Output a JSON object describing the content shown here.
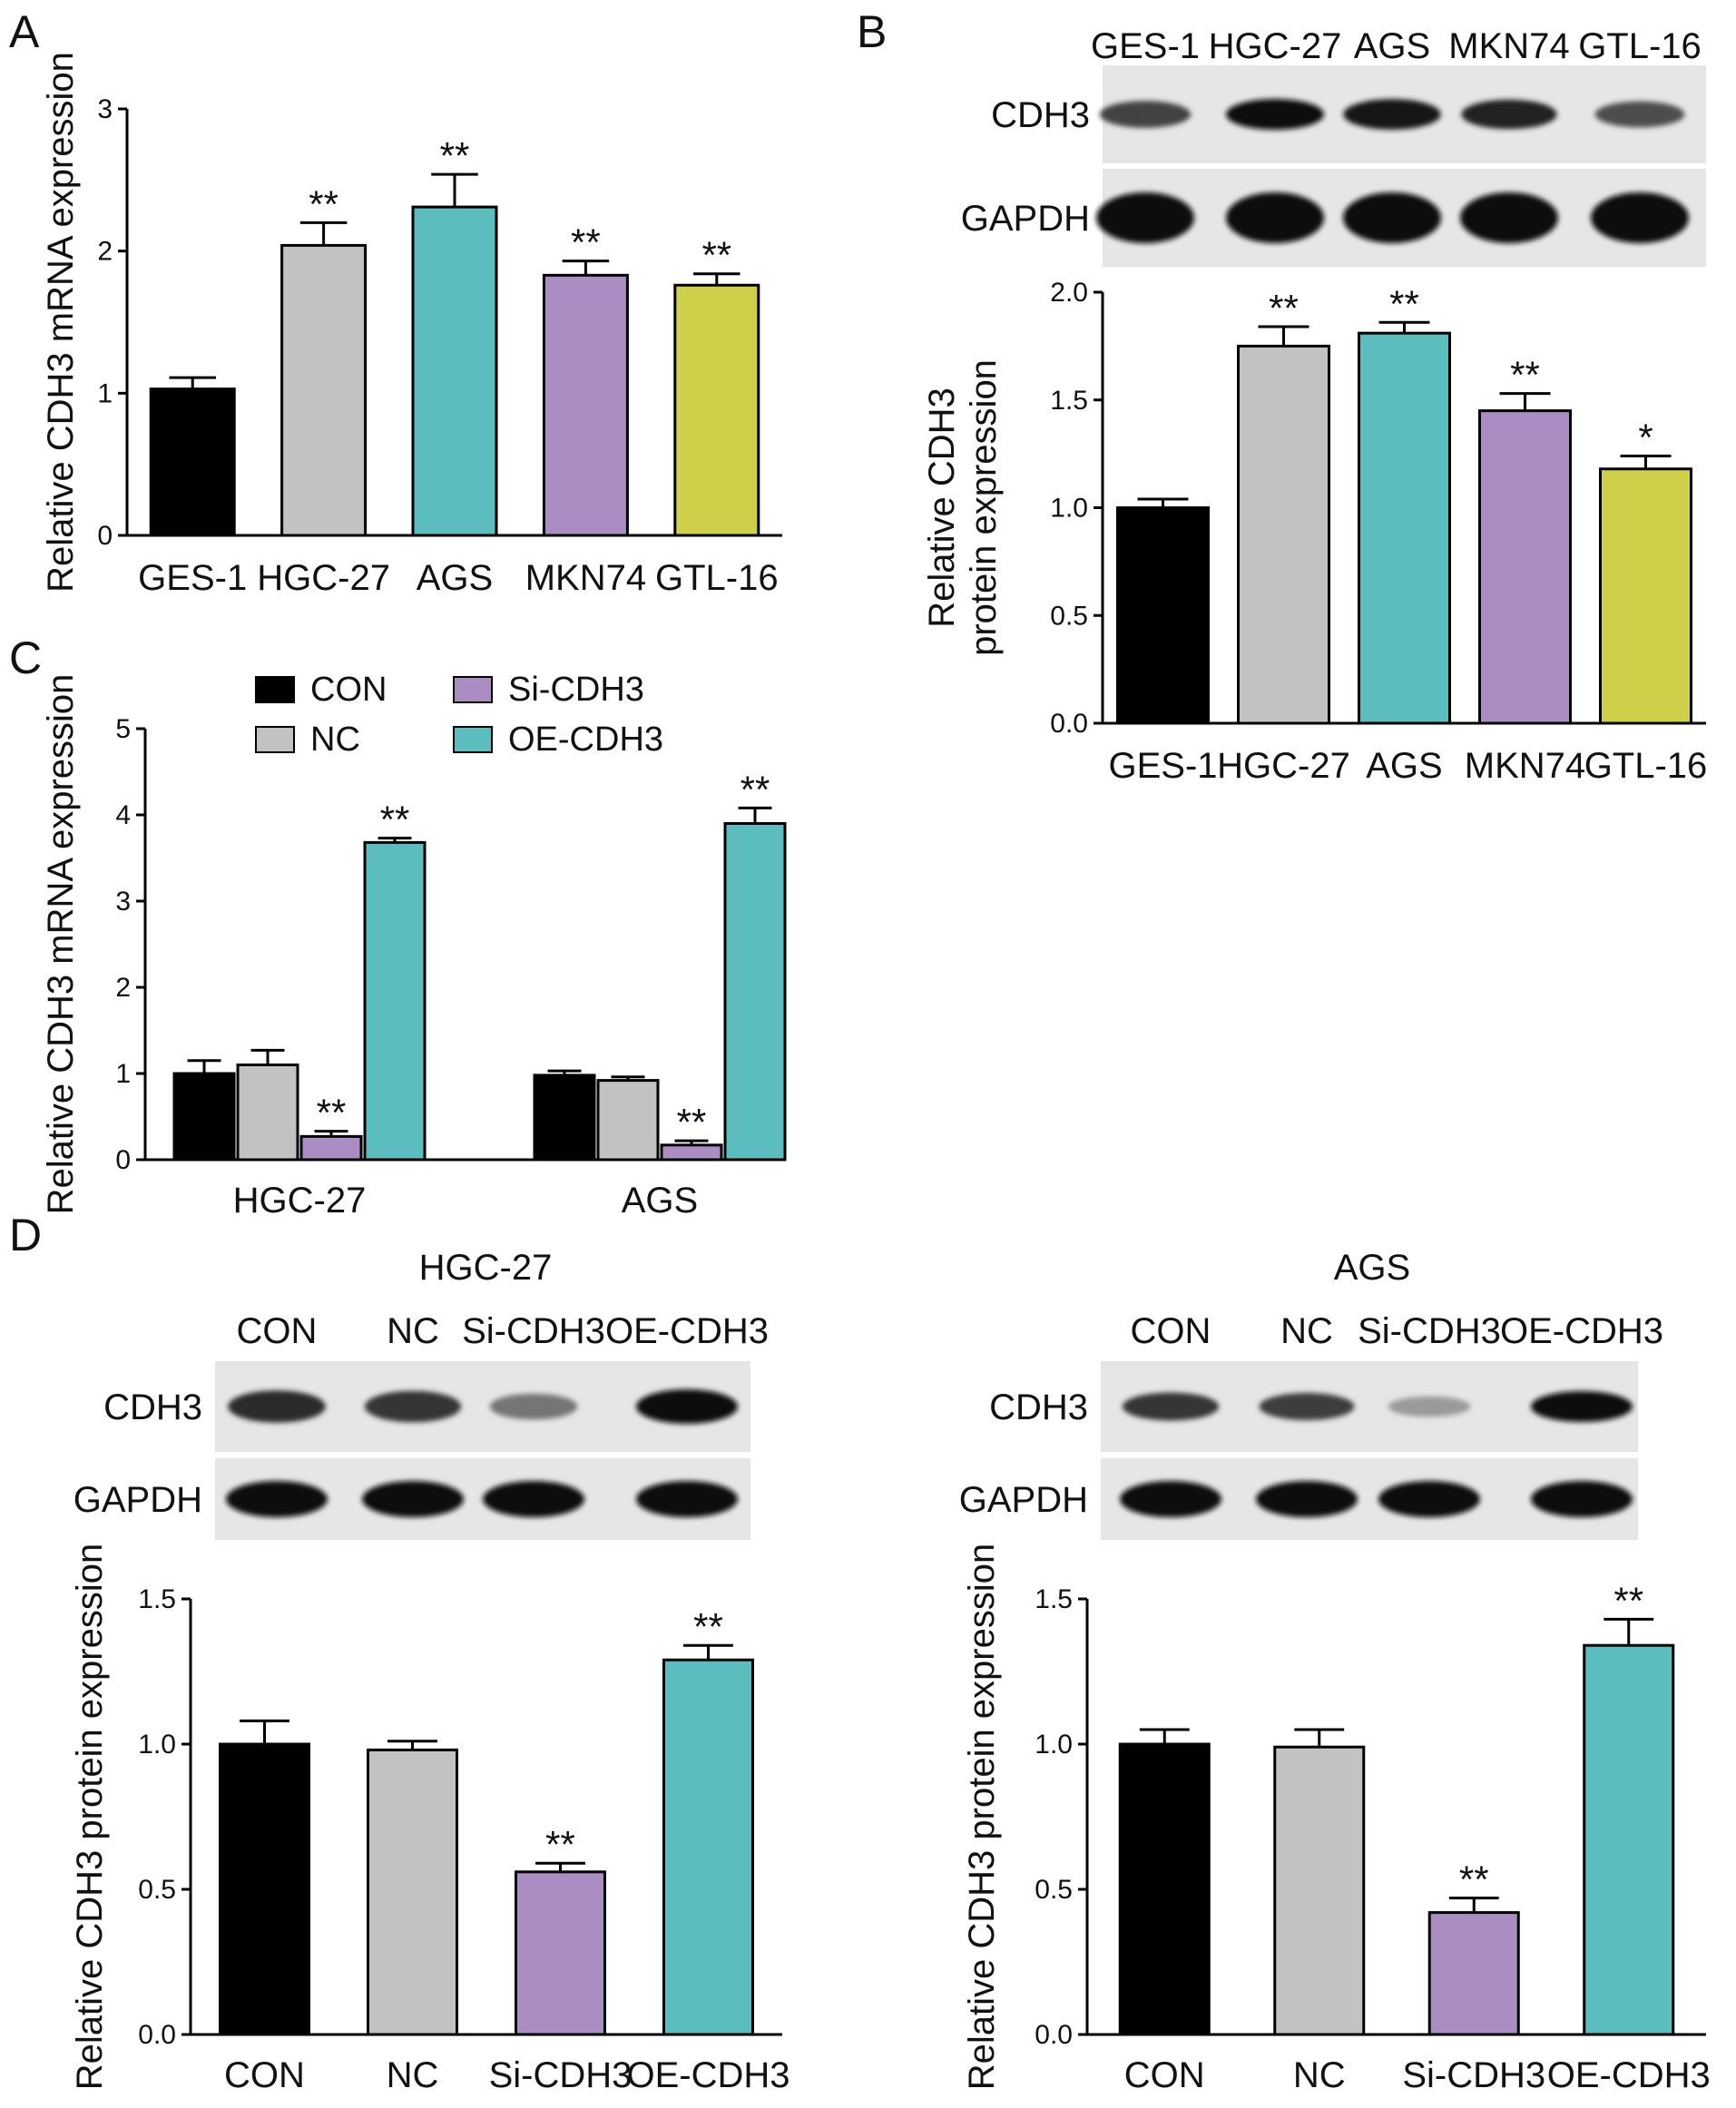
{
  "panel_letters": [
    "A",
    "B",
    "C",
    "D"
  ],
  "colors": {
    "CON": "#000000",
    "NC": "#c2c2c2",
    "GES-1": "#000000",
    "HGC-27": "#c2c2c2",
    "AGS": "#5bbdbd",
    "MKN74": "#a98dc3",
    "GTL-16": "#cfd04a",
    "Si-CDH3": "#a98dc3",
    "OE-CDH3": "#5bbdbd"
  },
  "blots": {
    "B": {
      "lanes": [
        "GES-1",
        "HGC-27",
        "AGS",
        "MKN74",
        "GTL-16"
      ],
      "rows": [
        "CDH3",
        "GAPDH"
      ]
    },
    "D_left": {
      "title": "HGC-27",
      "lanes": [
        "CON",
        "NC",
        "Si-CDH3",
        "OE-CDH3"
      ],
      "rows": [
        "CDH3",
        "GAPDH"
      ]
    },
    "D_right": {
      "title": "AGS",
      "lanes": [
        "CON",
        "NC",
        "Si-CDH3",
        "OE-CDH3"
      ],
      "rows": [
        "CDH3",
        "GAPDH"
      ]
    }
  },
  "chart_data": [
    {
      "panel": "A",
      "type": "bar",
      "ylabel": "Relative CDH3 mRNA expression",
      "ylim": [
        0,
        3
      ],
      "yticks": [
        "0",
        "1",
        "2",
        "3"
      ],
      "categories": [
        "GES-1",
        "HGC-27",
        "AGS",
        "MKN74",
        "GTL-16"
      ],
      "values": [
        1.03,
        2.04,
        2.31,
        1.83,
        1.76
      ],
      "errors": [
        0.08,
        0.16,
        0.23,
        0.1,
        0.08
      ],
      "significance": [
        "",
        "**",
        "**",
        "**",
        "**"
      ]
    },
    {
      "panel": "B",
      "type": "bar",
      "ylabel": "Relative CDH3 protein expression",
      "ylim": [
        0,
        2
      ],
      "yticks": [
        "0.0",
        "0.5",
        "1.0",
        "1.5",
        "2.0"
      ],
      "categories": [
        "GES-1",
        "HGC-27",
        "AGS",
        "MKN74",
        "GTL-16"
      ],
      "values": [
        1.0,
        1.75,
        1.81,
        1.45,
        1.18
      ],
      "errors": [
        0.04,
        0.09,
        0.05,
        0.08,
        0.06
      ],
      "significance": [
        "",
        "**",
        "**",
        "**",
        "*"
      ]
    },
    {
      "panel": "C",
      "type": "bar",
      "ylabel": "Relative CDH3 mRNA expression",
      "ylim": [
        0,
        5
      ],
      "yticks": [
        "0",
        "1",
        "2",
        "3",
        "4",
        "5"
      ],
      "categories": [
        "HGC-27",
        "AGS"
      ],
      "legend": [
        "CON",
        "Si-CDH3",
        "NC",
        "OE-CDH3"
      ],
      "series": [
        {
          "name": "CON",
          "values": [
            1.0,
            0.98
          ],
          "errors": [
            0.15,
            0.05
          ],
          "significance": [
            "",
            ""
          ]
        },
        {
          "name": "NC",
          "values": [
            1.1,
            0.92
          ],
          "errors": [
            0.17,
            0.04
          ],
          "significance": [
            "",
            ""
          ]
        },
        {
          "name": "Si-CDH3",
          "values": [
            0.27,
            0.17
          ],
          "errors": [
            0.06,
            0.05
          ],
          "significance": [
            "**",
            "**"
          ]
        },
        {
          "name": "OE-CDH3",
          "values": [
            3.68,
            3.9
          ],
          "errors": [
            0.05,
            0.18
          ],
          "significance": [
            "**",
            "**"
          ]
        }
      ]
    },
    {
      "panel": "D-HGC-27",
      "type": "bar",
      "ylabel": "Relative CDH3 protein expression",
      "ylim": [
        0,
        1.5
      ],
      "yticks": [
        "0.0",
        "0.5",
        "1.0",
        "1.5"
      ],
      "categories": [
        "CON",
        "NC",
        "Si-CDH3",
        "OE-CDH3"
      ],
      "values": [
        1.0,
        0.98,
        0.56,
        1.29
      ],
      "errors": [
        0.08,
        0.03,
        0.03,
        0.05
      ],
      "significance": [
        "",
        "",
        "**",
        "**"
      ]
    },
    {
      "panel": "D-AGS",
      "type": "bar",
      "ylabel": "Relative CDH3 protein expression",
      "ylim": [
        0,
        1.5
      ],
      "yticks": [
        "0.0",
        "0.5",
        "1.0",
        "1.5"
      ],
      "categories": [
        "CON",
        "NC",
        "Si-CDH3",
        "OE-CDH3"
      ],
      "values": [
        1.0,
        0.99,
        0.42,
        1.34
      ],
      "errors": [
        0.05,
        0.06,
        0.05,
        0.09
      ],
      "significance": [
        "",
        "",
        "**",
        "**"
      ]
    }
  ]
}
